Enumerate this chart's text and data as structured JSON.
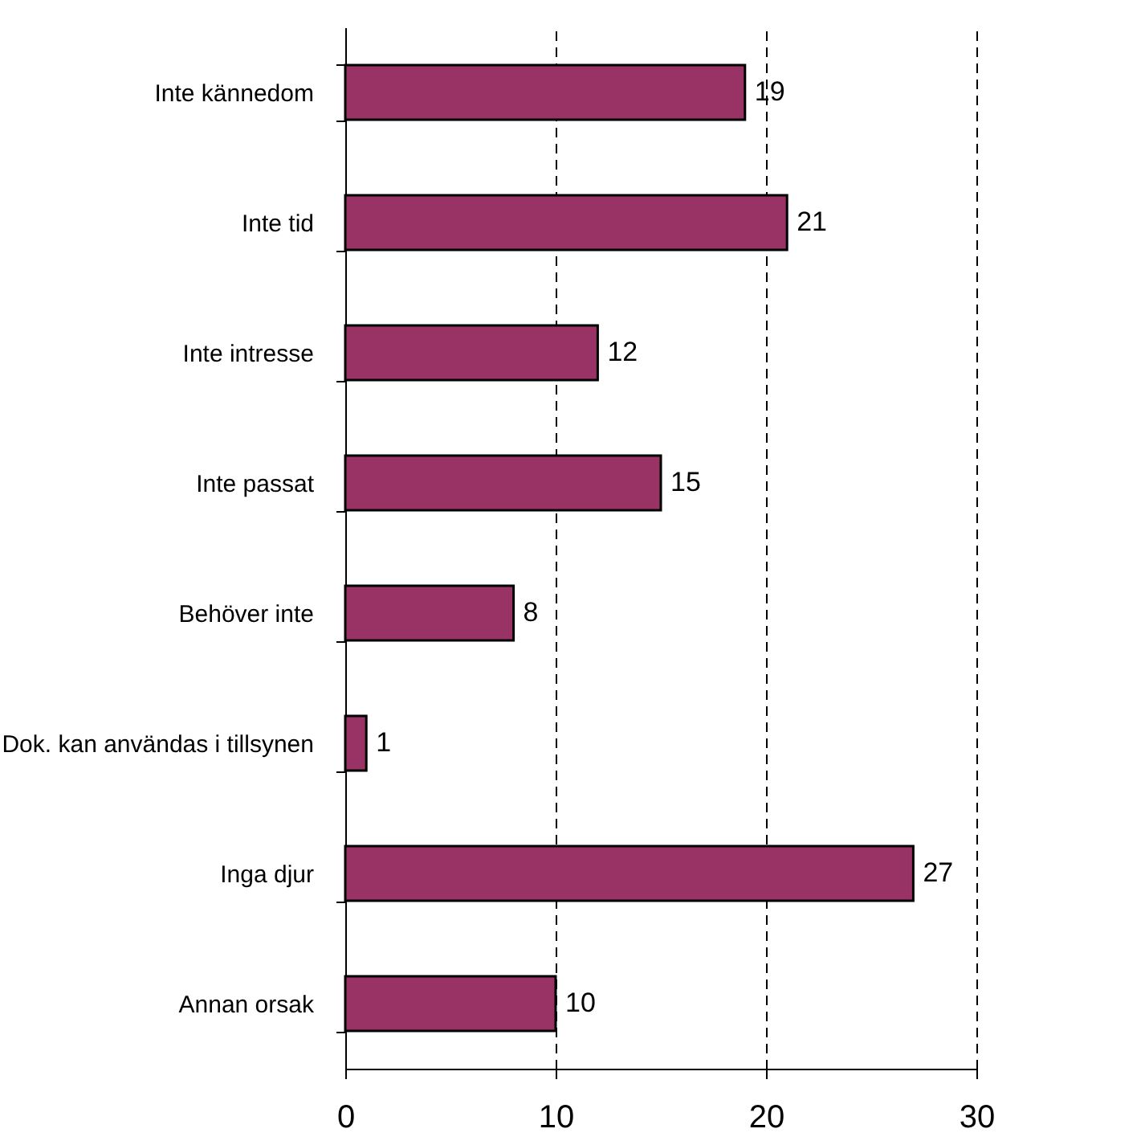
{
  "chart_data": {
    "type": "bar",
    "orientation": "horizontal",
    "categories": [
      "Inte kännedom",
      "Inte tid",
      "Inte intresse",
      "Inte passat",
      "Behöver inte",
      "Dok. kan användas i tillsynen",
      "Inga djur",
      "Annan orsak"
    ],
    "values": [
      19,
      21,
      12,
      15,
      8,
      1,
      27,
      10
    ],
    "color": "#993366",
    "xlim": [
      0,
      30
    ],
    "xticks": [
      0,
      10,
      20,
      30
    ],
    "grid": "x",
    "data_labels": true
  }
}
